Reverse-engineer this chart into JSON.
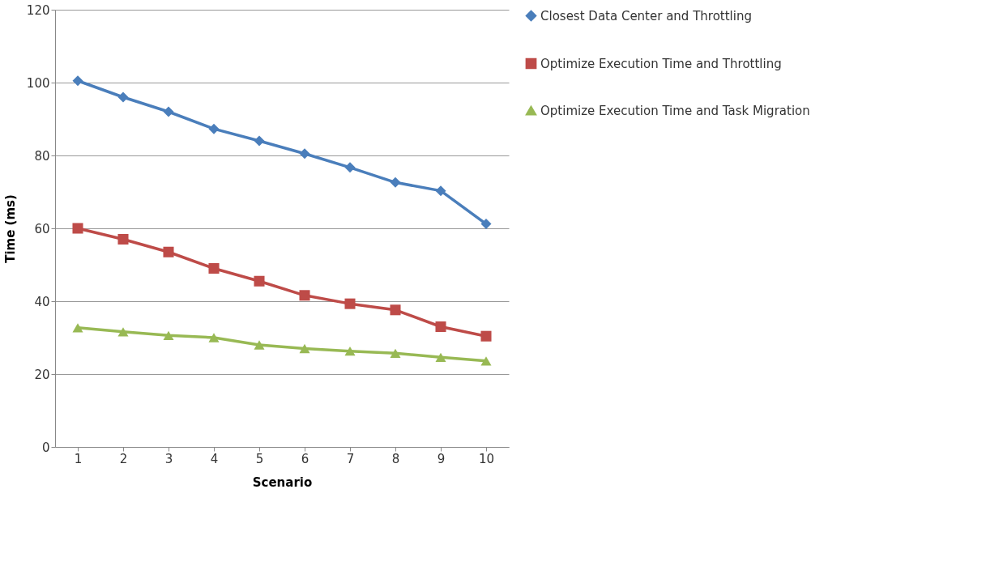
{
  "chart_data": {
    "type": "line",
    "xlabel": "Scenario",
    "ylabel": "Time (ms)",
    "categories": [
      "1",
      "2",
      "3",
      "4",
      "5",
      "6",
      "7",
      "8",
      "9",
      "10"
    ],
    "ylim": [
      0,
      120
    ],
    "yticks": [
      0,
      20,
      40,
      60,
      80,
      100,
      120
    ],
    "grid": "y",
    "legend": "right",
    "line_style": "solid",
    "series": [
      {
        "name": "Closest Data Center and Throttling",
        "color": "#4a7ebb",
        "marker": "diamond",
        "values": [
          100.5,
          96,
          92,
          87.3,
          84,
          80.5,
          76.7,
          72.6,
          70.3,
          61.2
        ]
      },
      {
        "name": "Optimize Execution Time and Throttling",
        "color": "#be4b48",
        "marker": "square",
        "values": [
          60,
          57,
          53.5,
          49,
          45.5,
          41.6,
          39.3,
          37.6,
          33,
          30.4
        ]
      },
      {
        "name": "Optimize Execution Time and Task Migration",
        "color": "#98b954",
        "marker": "triangle",
        "values": [
          32.7,
          31.6,
          30.6,
          30,
          28,
          27,
          26.3,
          25.7,
          24.6,
          23.6
        ]
      }
    ]
  }
}
